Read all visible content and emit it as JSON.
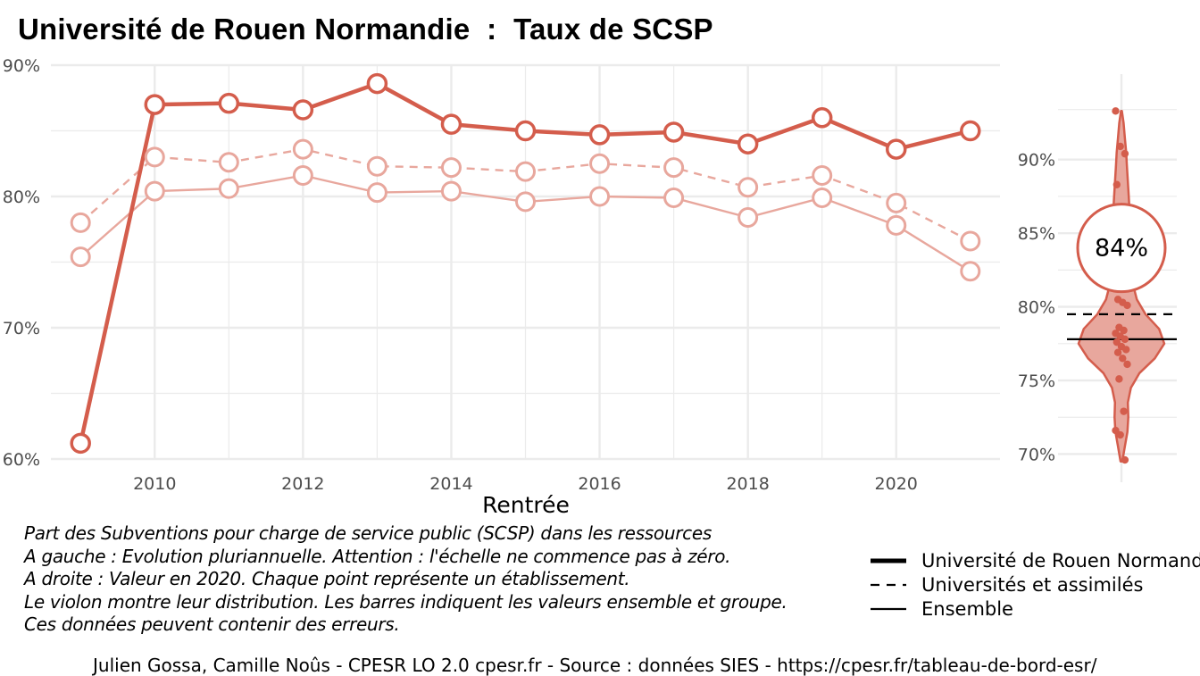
{
  "title": "Université de Rouen Normandie  :  Taux de SCSP",
  "captions": [
    "Part des Subventions pour charge de service public (SCSP) dans les ressources",
    "A gauche : Evolution pluriannuelle. Attention : l'échelle ne commence pas à zéro.",
    "A droite : Valeur en 2020. Chaque point représente un établissement.",
    "Le violon montre leur distribution. Les barres indiquent les valeurs ensemble et groupe.",
    "Ces données peuvent contenir des erreurs."
  ],
  "legend": [
    {
      "label": "Université de Rouen Normandie",
      "style": "thick"
    },
    {
      "label": "Universités et assimilés",
      "style": "dashed"
    },
    {
      "label": "Ensemble",
      "style": "thin"
    }
  ],
  "footer": "Julien Gossa, Camille Noûs - CPESR LO 2.0 cpesr.fr - Source : données SIES - https://cpesr.fr/tableau-de-bord-esr/",
  "colors": {
    "accent": "#d45d4c",
    "light": "#e8a79d",
    "violin_fill": "#e8a79d",
    "grid": "#ebebeb",
    "axis_text": "#4d4d4d"
  },
  "chart_data": [
    {
      "type": "line",
      "xlabel": "Rentrée",
      "ylabel": "",
      "xlim": [
        2008.6,
        2021.4
      ],
      "ylim": [
        60,
        90
      ],
      "xticks": [
        2010,
        2012,
        2014,
        2016,
        2018,
        2020
      ],
      "xtick_labels": [
        "2010",
        "2012",
        "2014",
        "2016",
        "2018",
        "2020"
      ],
      "yticks": [
        60,
        70,
        80,
        90
      ],
      "ytick_labels": [
        "60%",
        "70%",
        "80%",
        "90%"
      ],
      "grid": true,
      "x": [
        2009,
        2010,
        2011,
        2012,
        2013,
        2014,
        2015,
        2016,
        2017,
        2018,
        2019,
        2020,
        2021
      ],
      "series": [
        {
          "name": "Université de Rouen Normandie",
          "style": "thick",
          "values": [
            61.2,
            87.0,
            87.1,
            86.6,
            88.6,
            85.5,
            85.0,
            84.7,
            84.9,
            84.0,
            86.0,
            83.6,
            85.0
          ]
        },
        {
          "name": "Universités et assimilés",
          "style": "dashed",
          "values": [
            78.0,
            83.0,
            82.6,
            83.6,
            82.3,
            82.2,
            81.9,
            82.5,
            82.2,
            80.7,
            81.6,
            79.5,
            76.6
          ]
        },
        {
          "name": "Ensemble",
          "style": "thin",
          "values": [
            75.4,
            80.4,
            80.6,
            81.6,
            80.3,
            80.4,
            79.6,
            80.0,
            79.9,
            78.4,
            79.9,
            77.8,
            74.3
          ]
        }
      ]
    },
    {
      "type": "violin",
      "ylim": [
        69.3,
        95.2
      ],
      "yticks": [
        70,
        75,
        80,
        85,
        90
      ],
      "ytick_labels": [
        "70%",
        "75%",
        "80%",
        "85%",
        "90%"
      ],
      "grid": true,
      "value_label": "84%",
      "value": 84,
      "group_value": 79.5,
      "overall_value": 77.8,
      "points": [
        93.3,
        90.9,
        90.4,
        88.3,
        86.8,
        85.8,
        80.5,
        80.3,
        80.1,
        78.6,
        78.4,
        78.2,
        78.0,
        77.8,
        77.6,
        77.3,
        77.1,
        76.9,
        76.5,
        76.1,
        75.1,
        72.9,
        71.6,
        71.3,
        69.6
      ],
      "density": [
        [
          69.5,
          0.02
        ],
        [
          70.5,
          0.08
        ],
        [
          71.5,
          0.14
        ],
        [
          72.5,
          0.16
        ],
        [
          73.5,
          0.15
        ],
        [
          74.5,
          0.22
        ],
        [
          75.5,
          0.42
        ],
        [
          76.5,
          0.78
        ],
        [
          77.5,
          1.0
        ],
        [
          78.5,
          0.88
        ],
        [
          79.5,
          0.56
        ],
        [
          80.5,
          0.36
        ],
        [
          81.5,
          0.27
        ],
        [
          82.5,
          0.24
        ],
        [
          83.5,
          0.24
        ],
        [
          84.5,
          0.24
        ],
        [
          85.5,
          0.22
        ],
        [
          86.5,
          0.19
        ],
        [
          87.5,
          0.17
        ],
        [
          88.5,
          0.15
        ],
        [
          89.5,
          0.13
        ],
        [
          90.5,
          0.11
        ],
        [
          91.5,
          0.08
        ],
        [
          92.5,
          0.05
        ],
        [
          93.3,
          0.01
        ]
      ]
    }
  ]
}
